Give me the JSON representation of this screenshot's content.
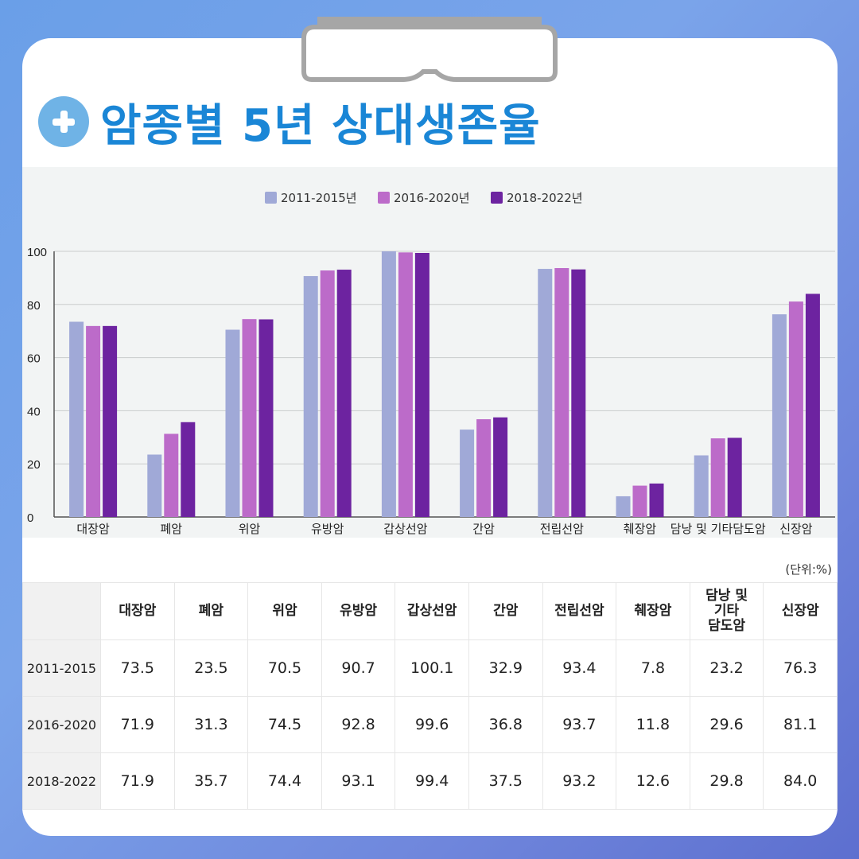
{
  "title": "암종별 5년 상대생존율",
  "colors": {
    "s1": "#a0a9d7",
    "s2": "#bc6bc9",
    "s3": "#6d23a0",
    "title": "#1a86d6"
  },
  "chart_data": {
    "type": "bar",
    "categories": [
      "대장암",
      "폐암",
      "위암",
      "유방암",
      "갑상선암",
      "간암",
      "전립선암",
      "췌장암",
      "담낭 및 기타담도암",
      "신장암"
    ],
    "series": [
      {
        "name": "2011-2015년",
        "values": [
          73.5,
          23.5,
          70.5,
          90.7,
          100.1,
          32.9,
          93.4,
          7.8,
          23.2,
          76.3
        ]
      },
      {
        "name": "2016-2020년",
        "values": [
          71.9,
          31.3,
          74.5,
          92.8,
          99.6,
          36.8,
          93.7,
          11.8,
          29.6,
          81.1
        ]
      },
      {
        "name": "2018-2022년",
        "values": [
          71.9,
          35.7,
          74.4,
          93.1,
          99.4,
          37.5,
          93.2,
          12.6,
          29.8,
          84.0
        ]
      }
    ],
    "ylim": [
      0,
      100
    ],
    "yticks": [
      "0",
      "20",
      "40",
      "60",
      "80",
      "100"
    ],
    "legend": "top-center",
    "grid": true
  },
  "table": {
    "unit": "(단위:%)",
    "headers": [
      "대장암",
      "폐암",
      "위암",
      "유방암",
      "갑상선암",
      "간암",
      "전립선암",
      "췌장암",
      "담낭 및 기타 담도암",
      "신장암"
    ],
    "header_lines": {
      "h9_1": "담낭 및",
      "h9_2": "기타",
      "h9_3": "담도암"
    },
    "rows": [
      {
        "label": "2011-2015",
        "values": [
          "73.5",
          "23.5",
          "70.5",
          "90.7",
          "100.1",
          "32.9",
          "93.4",
          "7.8",
          "23.2",
          "76.3"
        ]
      },
      {
        "label": "2016-2020",
        "values": [
          "71.9",
          "31.3",
          "74.5",
          "92.8",
          "99.6",
          "36.8",
          "93.7",
          "11.8",
          "29.6",
          "81.1"
        ]
      },
      {
        "label": "2018-2022",
        "values": [
          "71.9",
          "35.7",
          "74.4",
          "93.1",
          "99.4",
          "37.5",
          "93.2",
          "12.6",
          "29.8",
          "84.0"
        ]
      }
    ]
  }
}
